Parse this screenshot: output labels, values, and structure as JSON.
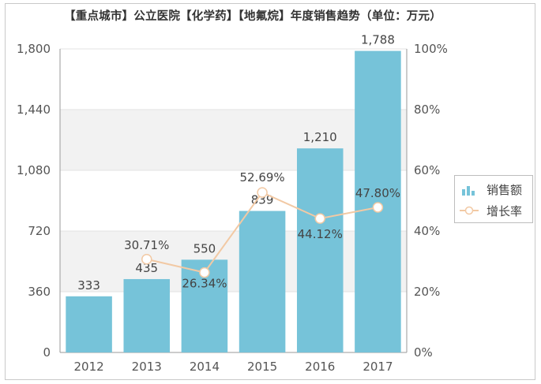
{
  "title": "【重点城市】公立医院【化学药】【地氟烷】年度销售趋势（单位：万元）",
  "legend": {
    "bar_label": "销售额",
    "line_label": "增长率"
  },
  "colors": {
    "bar": "#76c3d9",
    "line": "#f2c9a4",
    "grid": "#e3e3e3",
    "band": "#f2f2f2"
  },
  "chart_data": {
    "type": "bar",
    "title": "【重点城市】公立医院【化学药】【地氟烷】年度销售趋势（单位：万元）",
    "categories": [
      "2012",
      "2013",
      "2014",
      "2015",
      "2016",
      "2017"
    ],
    "series": [
      {
        "name": "销售额",
        "type": "bar",
        "axis": "left",
        "values": [
          333,
          435,
          550,
          839,
          1210,
          1788
        ],
        "labels": [
          "333",
          "435",
          "550",
          "839",
          "1,210",
          "1,788"
        ]
      },
      {
        "name": "增长率",
        "type": "line",
        "axis": "right",
        "values": [
          null,
          30.71,
          26.34,
          52.69,
          44.12,
          47.8
        ],
        "labels": [
          "",
          "30.71%",
          "26.34%",
          "52.69%",
          "44.12%",
          "47.80%"
        ]
      }
    ],
    "left_axis": {
      "ylim": [
        0,
        1800
      ],
      "ticks": [
        "0",
        "360",
        "720",
        "1,080",
        "1,440",
        "1,800"
      ]
    },
    "right_axis": {
      "ylim": [
        0,
        100
      ],
      "ticks": [
        "0%",
        "20%",
        "40%",
        "60%",
        "80%",
        "100%"
      ]
    },
    "legend_position": "right",
    "grid": true
  }
}
